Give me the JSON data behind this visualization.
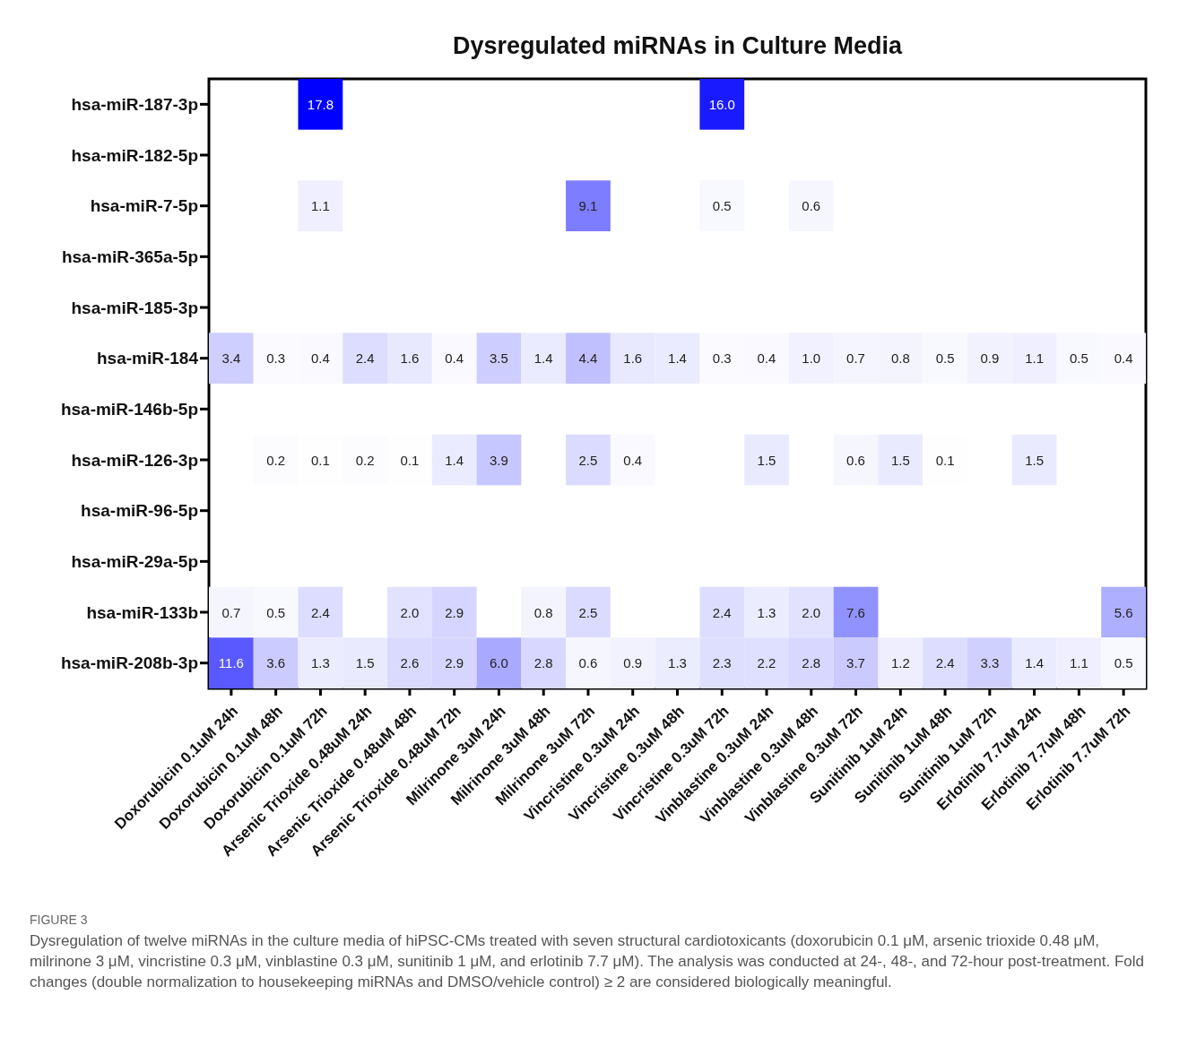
{
  "chart_data": {
    "type": "heatmap",
    "title": "Dysregulated miRNAs in Culture Media",
    "categories": [
      "Doxorubicin 0.1uM 24h",
      "Doxorubicin 0.1uM 48h",
      "Doxorubicin 0.1uM 72h",
      "Arsenic Trioxide 0.48uM 24h",
      "Arsenic Trioxide 0.48uM 48h",
      "Arsenic Trioxide 0.48uM 72h",
      "Milrinone 3uM 24h",
      "Milrinone 3uM 48h",
      "Milrinone 3uM 72h",
      "Vincristine 0.3uM 24h",
      "Vincristine 0.3uM 48h",
      "Vincristine 0.3uM 72h",
      "Vinblastine 0.3uM 24h",
      "Vinblastine 0.3uM 48h",
      "Vinblastine 0.3uM 72h",
      "Sunitinib 1uM 24h",
      "Sunitinib 1uM 48h",
      "Sunitinib 1uM 72h",
      "Erlotinib 7.7uM 24h",
      "Erlotinib 7.7uM 48h",
      "Erlotinib 7.7uM 72h"
    ],
    "y_categories": [
      "hsa-miR-187-3p",
      "hsa-miR-182-5p",
      "hsa-miR-7-5p",
      "hsa-miR-365a-5p",
      "hsa-miR-185-3p",
      "hsa-miR-184",
      "hsa-miR-146b-5p",
      "hsa-miR-126-3p",
      "hsa-miR-96-5p",
      "hsa-miR-29a-5p",
      "hsa-miR-133b",
      "hsa-miR-208b-3p"
    ],
    "cells": [
      [
        null,
        null,
        17.8,
        null,
        null,
        null,
        null,
        null,
        null,
        null,
        null,
        16.0,
        null,
        null,
        null,
        null,
        null,
        null,
        null,
        null,
        null
      ],
      [
        null,
        null,
        null,
        null,
        null,
        null,
        null,
        null,
        null,
        null,
        null,
        null,
        null,
        null,
        null,
        null,
        null,
        null,
        null,
        null,
        null
      ],
      [
        null,
        null,
        1.1,
        null,
        null,
        null,
        null,
        null,
        9.1,
        null,
        null,
        0.5,
        null,
        0.6,
        null,
        null,
        null,
        null,
        null,
        null,
        null
      ],
      [
        null,
        null,
        null,
        null,
        null,
        null,
        null,
        null,
        null,
        null,
        null,
        null,
        null,
        null,
        null,
        null,
        null,
        null,
        null,
        null,
        null
      ],
      [
        null,
        null,
        null,
        null,
        null,
        null,
        null,
        null,
        null,
        null,
        null,
        null,
        null,
        null,
        null,
        null,
        null,
        null,
        null,
        null,
        null
      ],
      [
        3.4,
        0.3,
        0.4,
        2.4,
        1.6,
        0.4,
        3.5,
        1.4,
        4.4,
        1.6,
        1.4,
        0.3,
        0.4,
        1.0,
        0.7,
        0.8,
        0.5,
        0.9,
        1.1,
        0.5,
        0.4
      ],
      [
        null,
        null,
        null,
        null,
        null,
        null,
        null,
        null,
        null,
        null,
        null,
        null,
        null,
        null,
        null,
        null,
        null,
        null,
        null,
        null,
        null
      ],
      [
        null,
        0.2,
        0.1,
        0.2,
        0.1,
        1.4,
        3.9,
        null,
        2.5,
        0.4,
        null,
        null,
        1.5,
        null,
        0.6,
        1.5,
        0.1,
        null,
        1.5,
        null,
        null
      ],
      [
        null,
        null,
        null,
        null,
        null,
        null,
        null,
        null,
        null,
        null,
        null,
        null,
        null,
        null,
        null,
        null,
        null,
        null,
        null,
        null,
        null
      ],
      [
        null,
        null,
        null,
        null,
        null,
        null,
        null,
        null,
        null,
        null,
        null,
        null,
        null,
        null,
        null,
        null,
        null,
        null,
        null,
        null,
        null
      ],
      [
        0.7,
        0.5,
        2.4,
        null,
        2.0,
        2.9,
        null,
        0.8,
        2.5,
        null,
        null,
        2.4,
        1.3,
        2.0,
        7.6,
        null,
        null,
        null,
        null,
        null,
        5.6
      ],
      [
        11.6,
        3.6,
        1.3,
        1.5,
        2.6,
        2.9,
        6.0,
        2.8,
        0.6,
        0.9,
        1.3,
        2.3,
        2.2,
        2.8,
        3.7,
        1.2,
        2.4,
        3.3,
        1.4,
        1.1,
        0.5
      ]
    ],
    "cell_labels": [
      [
        null,
        null,
        "17.8",
        null,
        null,
        null,
        null,
        null,
        null,
        null,
        null,
        "16.0",
        null,
        null,
        null,
        null,
        null,
        null,
        null,
        null,
        null
      ],
      [
        null,
        null,
        null,
        null,
        null,
        null,
        null,
        null,
        null,
        null,
        null,
        null,
        null,
        null,
        null,
        null,
        null,
        null,
        null,
        null,
        null
      ],
      [
        null,
        null,
        "1.1",
        null,
        null,
        null,
        null,
        null,
        "9.1",
        null,
        null,
        "0.5",
        null,
        "0.6",
        null,
        null,
        null,
        null,
        null,
        null,
        null
      ],
      [
        null,
        null,
        null,
        null,
        null,
        null,
        null,
        null,
        null,
        null,
        null,
        null,
        null,
        null,
        null,
        null,
        null,
        null,
        null,
        null,
        null
      ],
      [
        null,
        null,
        null,
        null,
        null,
        null,
        null,
        null,
        null,
        null,
        null,
        null,
        null,
        null,
        null,
        null,
        null,
        null,
        null,
        null,
        null
      ],
      [
        "3.4",
        "0.3",
        "0.4",
        "2.4",
        "1.6",
        "0.4",
        "3.5",
        "1.4",
        "4.4",
        "1.6",
        "1.4",
        "0.3",
        "0.4",
        "1.0",
        "0.7",
        "0.8",
        "0.5",
        "0.9",
        "1.1",
        "0.5",
        "0.4"
      ],
      [
        null,
        null,
        null,
        null,
        null,
        null,
        null,
        null,
        null,
        null,
        null,
        null,
        null,
        null,
        null,
        null,
        null,
        null,
        null,
        null,
        null
      ],
      [
        null,
        "0.2",
        "0.1",
        "0.2",
        "0.1",
        "1.4",
        "3.9",
        null,
        "2.5",
        "0.4",
        null,
        null,
        "1.5",
        null,
        "0.6",
        "1.5",
        "0.1",
        null,
        "1.5",
        null,
        null
      ],
      [
        null,
        null,
        null,
        null,
        null,
        null,
        null,
        null,
        null,
        null,
        null,
        null,
        null,
        null,
        null,
        null,
        null,
        null,
        null,
        null,
        null
      ],
      [
        null,
        null,
        null,
        null,
        null,
        null,
        null,
        null,
        null,
        null,
        null,
        null,
        null,
        null,
        null,
        null,
        null,
        null,
        null,
        null,
        null
      ],
      [
        "0.7",
        "0.5",
        "2.4",
        null,
        "2.0",
        "2.9",
        null,
        "0.8",
        "2.5",
        null,
        null,
        "2.4",
        "1.3",
        "2.0",
        "7.6",
        null,
        null,
        null,
        null,
        null,
        "5.6"
      ],
      [
        "11.6",
        "3.6",
        "1.3",
        "1.5",
        "2.6",
        "2.9",
        "6.0",
        "2.8",
        "0.6",
        "0.9",
        "1.3",
        "2.3",
        "2.2",
        "2.8",
        "3.7",
        "1.2",
        "2.4",
        "3.3",
        "1.4",
        "1.1",
        "0.5"
      ]
    ],
    "data_labels": true,
    "annotations": [
      "FIGURE 3",
      "Dysregulation of twelve miRNAs in the culture media of hiPSC-CMs treated with seven structural cardiotoxicants (doxorubicin 0.1 μM, arsenic trioxide 0.48 μM, milrinone 3 μM, vincristine 0.3 μM, vinblastine 0.3 μM, sunitinib 1 μM, and erlotinib 7.7 μM). The analysis was conducted at 24-, 48-, and 72-hour post-treatment. Fold changes (double normalization to housekeeping miRNAs and DMSO/vehicle control) ≥ 2 are considered biologically meaningful."
    ]
  }
}
